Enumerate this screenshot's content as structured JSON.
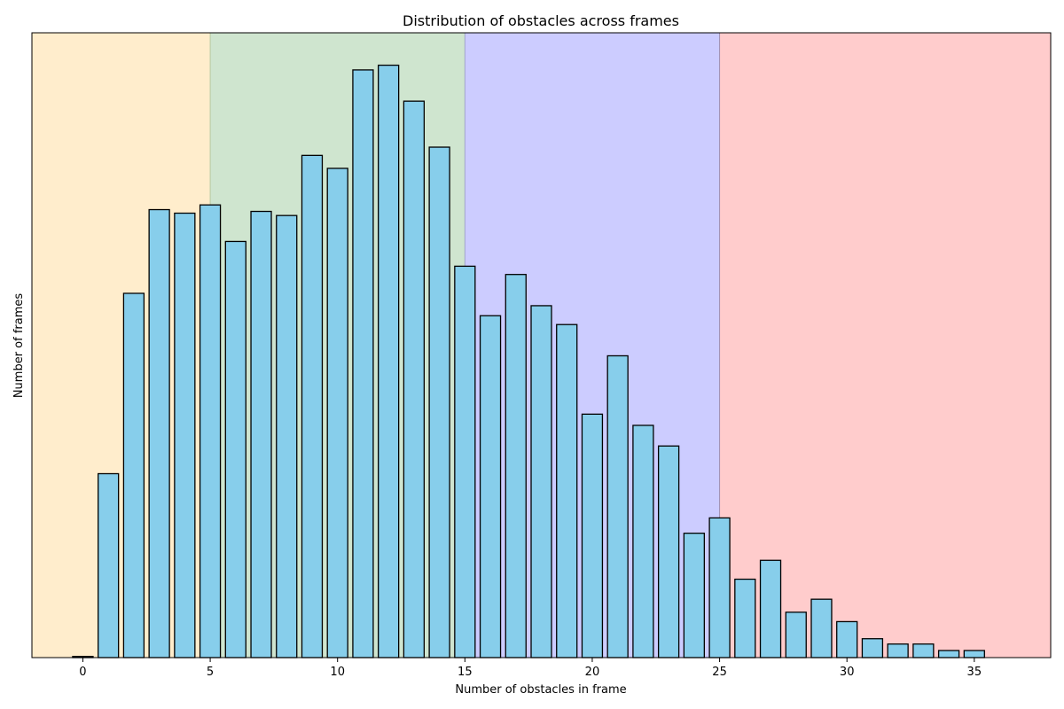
{
  "chart_data": {
    "type": "bar",
    "title": "Distribution of obstacles across frames",
    "xlabel": "Number of obstacles in frame",
    "ylabel": "Number of frames",
    "x": [
      0,
      1,
      2,
      3,
      4,
      5,
      6,
      7,
      8,
      9,
      10,
      11,
      12,
      13,
      14,
      15,
      16,
      17,
      18,
      19,
      20,
      21,
      22,
      23,
      24,
      25,
      26,
      27,
      28,
      29,
      30,
      31,
      32,
      33,
      34,
      35
    ],
    "values": [
      0.2,
      31.2,
      61.8,
      76.0,
      75.4,
      76.8,
      70.6,
      75.7,
      75.0,
      85.2,
      83.0,
      99.7,
      100.5,
      94.4,
      86.6,
      66.4,
      58.0,
      65.0,
      59.7,
      56.5,
      41.3,
      51.2,
      39.4,
      35.9,
      21.1,
      23.7,
      13.3,
      16.5,
      7.7,
      9.9,
      6.1,
      3.2,
      2.3,
      2.3,
      1.2,
      1.2
    ],
    "ylim": [
      0,
      106
    ],
    "xlim": [
      -2.0,
      38.0
    ],
    "xticks": [
      0,
      5,
      10,
      15,
      20,
      25,
      30,
      35
    ],
    "yticks_shown": false,
    "grid": false,
    "bands": [
      {
        "from": -2.0,
        "to": 5.0,
        "color": "#FFEDCC"
      },
      {
        "from": 5.0,
        "to": 15.0,
        "color": "#CFE5CF"
      },
      {
        "from": 15.0,
        "to": 25.0,
        "color": "#CCCCFF"
      },
      {
        "from": 25.0,
        "to": 38.0,
        "color": "#FFCCCC"
      }
    ],
    "band_edge_colors": [
      "#B8C9A0",
      "#A0A6C9",
      "#A090B0"
    ],
    "bar_color": "#87CEEB",
    "bar_edge_color": "#000000"
  }
}
